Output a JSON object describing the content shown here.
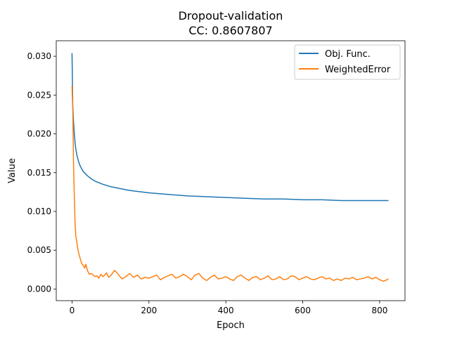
{
  "chart_data": {
    "type": "line",
    "title": "Dropout-validation",
    "subtitle": "CC: 0.8607807",
    "xlabel": "Epoch",
    "ylabel": "Value",
    "xlim": [
      -41,
      866
    ],
    "ylim": [
      -0.0015,
      0.032
    ],
    "xticks": [
      0,
      200,
      400,
      600,
      800
    ],
    "yticks": [
      0.0,
      0.005,
      0.01,
      0.015,
      0.02,
      0.025,
      0.03
    ],
    "ytick_labels": [
      "0.000",
      "0.005",
      "0.010",
      "0.015",
      "0.020",
      "0.025",
      "0.030"
    ],
    "grid": false,
    "legend_position": "top-right",
    "series": [
      {
        "name": "Obj. Func.",
        "color": "#1f77b4",
        "x": [
          0,
          2,
          4,
          6,
          8,
          10,
          13,
          16,
          20,
          25,
          30,
          40,
          50,
          60,
          80,
          100,
          120,
          150,
          200,
          250,
          300,
          350,
          400,
          450,
          500,
          550,
          600,
          650,
          700,
          750,
          800,
          823
        ],
        "values": [
          0.0304,
          0.0235,
          0.0215,
          0.02,
          0.0188,
          0.018,
          0.0172,
          0.0166,
          0.016,
          0.0155,
          0.0151,
          0.0146,
          0.0142,
          0.0139,
          0.0135,
          0.0132,
          0.013,
          0.0127,
          0.0124,
          0.0122,
          0.012,
          0.0119,
          0.0118,
          0.0117,
          0.0116,
          0.0116,
          0.0115,
          0.0115,
          0.0114,
          0.0114,
          0.0114,
          0.0114
        ]
      },
      {
        "name": "WeightedError",
        "color": "#ff7f0e",
        "x": [
          0,
          2,
          4,
          6,
          8,
          10,
          12,
          15,
          18,
          22,
          26,
          30,
          33,
          36,
          40,
          45,
          50,
          55,
          60,
          65,
          70,
          75,
          80,
          85,
          90,
          95,
          100,
          105,
          110,
          115,
          120,
          125,
          130,
          140,
          150,
          160,
          170,
          180,
          190,
          200,
          210,
          220,
          230,
          240,
          250,
          260,
          270,
          280,
          290,
          300,
          310,
          320,
          330,
          340,
          350,
          360,
          370,
          380,
          390,
          400,
          410,
          420,
          430,
          440,
          450,
          460,
          470,
          480,
          490,
          500,
          510,
          520,
          530,
          540,
          550,
          560,
          570,
          580,
          590,
          600,
          610,
          620,
          630,
          640,
          650,
          660,
          670,
          680,
          690,
          700,
          710,
          720,
          730,
          740,
          750,
          760,
          770,
          780,
          790,
          800,
          810,
          815,
          823
        ],
        "values": [
          0.0262,
          0.023,
          0.016,
          0.012,
          0.0085,
          0.0068,
          0.0062,
          0.0052,
          0.0045,
          0.0038,
          0.0032,
          0.003,
          0.0027,
          0.0032,
          0.0024,
          0.0019,
          0.002,
          0.0018,
          0.0016,
          0.0017,
          0.0014,
          0.0019,
          0.0016,
          0.0018,
          0.0021,
          0.0015,
          0.0017,
          0.002,
          0.0024,
          0.0022,
          0.0019,
          0.0016,
          0.0013,
          0.0016,
          0.002,
          0.0015,
          0.0018,
          0.0013,
          0.0015,
          0.0014,
          0.0016,
          0.0018,
          0.0012,
          0.0015,
          0.0017,
          0.0019,
          0.0014,
          0.0016,
          0.0019,
          0.0016,
          0.0012,
          0.0018,
          0.002,
          0.0014,
          0.0011,
          0.0015,
          0.0018,
          0.0013,
          0.0014,
          0.0016,
          0.0013,
          0.0011,
          0.0016,
          0.0018,
          0.0014,
          0.0011,
          0.0015,
          0.0016,
          0.0012,
          0.0014,
          0.0017,
          0.0012,
          0.0013,
          0.0016,
          0.0012,
          0.0013,
          0.0017,
          0.0016,
          0.0012,
          0.0014,
          0.0016,
          0.0013,
          0.0012,
          0.0014,
          0.0016,
          0.0013,
          0.0014,
          0.0011,
          0.0013,
          0.0011,
          0.0014,
          0.0013,
          0.0015,
          0.0012,
          0.0013,
          0.0014,
          0.0016,
          0.0013,
          0.0015,
          0.0012,
          0.001,
          0.0011,
          0.0013
        ]
      }
    ]
  }
}
